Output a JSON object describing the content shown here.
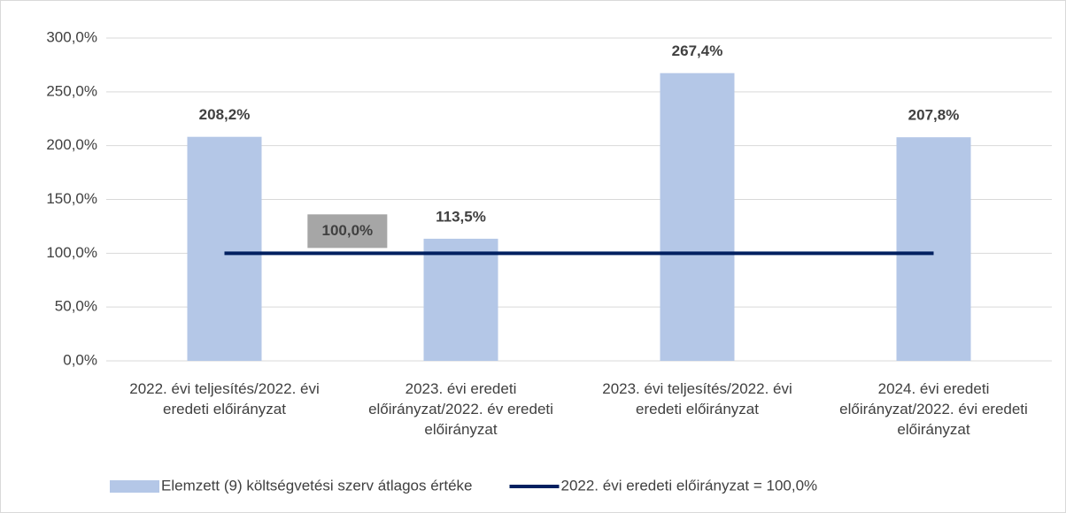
{
  "chart_data": {
    "type": "bar",
    "categories": [
      "2022. évi teljesítés/2022. évi eredeti előirányzat",
      "2023. évi eredeti előirányzat/2022. év eredeti előirányzat",
      "2023. évi teljesítés/2022. évi eredeti előirányzat",
      "2024. évi eredeti előirányzat/2022. évi eredeti előirányzat"
    ],
    "series": [
      {
        "name": "Elemzett (9) költségvetési szerv átlagos értéke",
        "type": "bar",
        "color": "#b4c7e7",
        "values": [
          208.2,
          113.5,
          267.4,
          207.8
        ],
        "value_labels": [
          "208,2%",
          "113,5%",
          "267,4%",
          "207,8%"
        ]
      },
      {
        "name": "2022. évi eredeti előirányzat = 100,0%",
        "type": "line",
        "color": "#002060",
        "values": [
          100,
          100,
          100,
          100
        ],
        "value_labels": [
          "100,0%",
          null,
          null,
          null
        ]
      }
    ],
    "ylim": [
      0,
      300
    ],
    "yticks": [
      {
        "value": 0,
        "label": "0,0%"
      },
      {
        "value": 50,
        "label": "50,0%"
      },
      {
        "value": 100,
        "label": "100,0%"
      },
      {
        "value": 150,
        "label": "150,0%"
      },
      {
        "value": 200,
        "label": "200,0%"
      },
      {
        "value": 250,
        "label": "250,0%"
      },
      {
        "value": 300,
        "label": "300,0%"
      }
    ],
    "grid": true,
    "legend": "bottom"
  }
}
